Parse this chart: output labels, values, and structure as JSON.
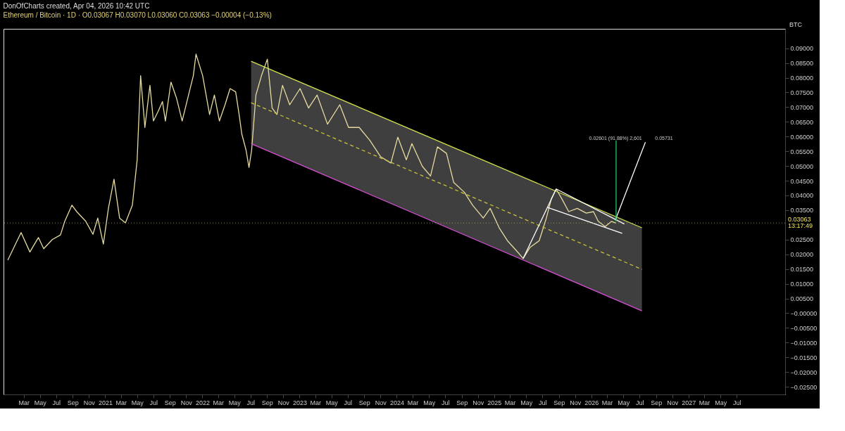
{
  "chart_data": {
    "type": "line",
    "title": "DonOfCharts created, Apr 04, 2026 10:42 UTC",
    "subtitle": "Ethereum / Bitcoin · 1D · O0.03067 H0.03070 L0.03060 C0.03063 −0.00004 (−0.13%)",
    "ylabel": "BTC",
    "x": [
      "2020-01-01",
      "2020-02-20",
      "2020-03-24",
      "2020-04-25",
      "2020-05-15",
      "2020-06-16",
      "2020-07-17",
      "2020-08-02",
      "2020-08-29",
      "2020-09-16",
      "2020-10-20",
      "2020-11-16",
      "2020-12-04",
      "2020-12-25",
      "2021-01-13",
      "2021-02-03",
      "2021-02-24",
      "2021-03-18",
      "2021-04-13",
      "2021-05-01",
      "2021-05-14",
      "2021-05-30",
      "2021-06-18",
      "2021-07-01",
      "2021-07-19",
      "2021-08-04",
      "2021-08-15",
      "2021-09-05",
      "2021-09-26",
      "2021-10-17",
      "2021-11-10",
      "2021-11-28",
      "2021-12-08",
      "2022-01-02",
      "2022-01-28",
      "2022-02-15",
      "2022-03-06",
      "2022-03-27",
      "2022-04-15",
      "2022-05-06",
      "2022-05-19",
      "2022-05-29",
      "2022-06-14",
      "2022-06-25",
      "2022-07-05",
      "2022-07-21",
      "2022-08-11",
      "2022-09-02",
      "2022-09-20",
      "2022-10-08",
      "2022-10-29",
      "2022-11-25",
      "2023-01-03",
      "2023-02-04",
      "2023-03-08",
      "2023-04-16",
      "2023-06-01",
      "2023-07-04",
      "2023-08-13",
      "2023-09-22",
      "2023-11-01",
      "2023-12-10",
      "2024-01-05",
      "2024-02-06",
      "2024-02-27",
      "2024-04-06",
      "2024-05-07",
      "2024-06-02",
      "2024-07-06",
      "2024-08-02",
      "2024-09-11",
      "2024-10-12",
      "2024-11-21",
      "2024-12-17",
      "2025-01-20",
      "2025-02-20",
      "2025-03-25",
      "2025-04-20",
      "2025-05-16",
      "2025-06-19",
      "2025-07-16",
      "2025-08-04",
      "2025-08-22",
      "2025-09-12",
      "2025-10-08",
      "2025-11-09",
      "2025-12-13",
      "2026-01-09",
      "2026-01-27",
      "2026-02-22",
      "2026-03-18",
      "2026-04-04"
    ],
    "series": [
      {
        "color": "#e6dba0",
        "values": [
          0.018,
          0.0274,
          0.0208,
          0.0257,
          0.0219,
          0.025,
          0.0266,
          0.0312,
          0.0367,
          0.0345,
          0.0312,
          0.0268,
          0.0323,
          0.0235,
          0.0356,
          0.0455,
          0.0323,
          0.0307,
          0.0367,
          0.0521,
          0.0807,
          0.0631,
          0.0774,
          0.0653,
          0.0686,
          0.0719,
          0.0653,
          0.0785,
          0.073,
          0.0653,
          0.0741,
          0.0807,
          0.088,
          0.0807,
          0.0675,
          0.0741,
          0.0653,
          0.0708,
          0.0763,
          0.0752,
          0.0675,
          0.0609,
          0.0554,
          0.0495,
          0.0554,
          0.0741,
          0.0807,
          0.0863,
          0.0697,
          0.0675,
          0.0774,
          0.0708,
          0.0763,
          0.0697,
          0.0741,
          0.0642,
          0.0708,
          0.0631,
          0.0631,
          0.0587,
          0.0532,
          0.051,
          0.0598,
          0.0521,
          0.0576,
          0.0499,
          0.0466,
          0.0565,
          0.0543,
          0.0444,
          0.0411,
          0.0367,
          0.0323,
          0.0356,
          0.029,
          0.0246,
          0.0213,
          0.0186,
          0.0224,
          0.0246,
          0.0323,
          0.0389,
          0.0422,
          0.0389,
          0.0345,
          0.0356,
          0.034,
          0.0345,
          0.0312,
          0.0294,
          0.0312,
          0.0306
        ]
      },
      {
        "color": "#d6e04a",
        "x": [
          "2022-07-03",
          "2026-07-10"
        ],
        "values": [
          0.0856,
          0.029
        ]
      },
      {
        "color": "#d64fd6",
        "x": [
          "2022-07-03",
          "2026-07-10"
        ],
        "values": [
          0.0576,
          0.0008
        ]
      },
      {
        "color": "#c9c23a",
        "line_style": "dashed",
        "x": [
          "2022-07-03",
          "2026-07-10"
        ],
        "values": [
          0.0715,
          0.0149
        ],
        "lower": [
          0.0576,
          0.0008
        ],
        "upper": [
          0.0856,
          0.029
        ]
      },
      {
        "color": "#ffffff",
        "x": [
          "2025-04-20",
          "2025-08-22"
        ],
        "values": [
          0.0186,
          0.0422
        ]
      },
      {
        "color": "#ffffff",
        "x": [
          "2025-08-22",
          "2026-05-05"
        ],
        "values": [
          0.0422,
          0.0303
        ]
      },
      {
        "color": "#ffffff",
        "x": [
          "2025-07-21",
          "2026-04-27"
        ],
        "values": [
          0.0359,
          0.0271
        ]
      },
      {
        "color": "#ffffff",
        "x": [
          "2026-04-01",
          "2026-07-23"
        ],
        "values": [
          0.0316,
          0.0581
        ]
      },
      {
        "color": "#22c55e",
        "x": [
          "2026-04-04",
          "2026-04-04"
        ],
        "values": [
          0.0312,
          0.0587
        ]
      }
    ],
    "xlim": [
      "2019-12-16",
      "2027-12-30"
    ],
    "xticks": [
      {
        "value": "2020-03-01",
        "label": "Mar"
      },
      {
        "value": "2020-05-01",
        "label": "May"
      },
      {
        "value": "2020-07-01",
        "label": "Jul"
      },
      {
        "value": "2020-09-01",
        "label": "Sep"
      },
      {
        "value": "2020-11-01",
        "label": "Nov"
      },
      {
        "value": "2021-01-01",
        "label": "2021"
      },
      {
        "value": "2021-03-01",
        "label": "Mar"
      },
      {
        "value": "2021-05-01",
        "label": "May"
      },
      {
        "value": "2021-07-01",
        "label": "Jul"
      },
      {
        "value": "2021-09-01",
        "label": "Sep"
      },
      {
        "value": "2021-11-01",
        "label": "Nov"
      },
      {
        "value": "2022-01-01",
        "label": "2022"
      },
      {
        "value": "2022-03-01",
        "label": "Mar"
      },
      {
        "value": "2022-05-01",
        "label": "May"
      },
      {
        "value": "2022-07-01",
        "label": "Jul"
      },
      {
        "value": "2022-09-01",
        "label": "Sep"
      },
      {
        "value": "2022-11-01",
        "label": "Nov"
      },
      {
        "value": "2023-01-01",
        "label": "2023"
      },
      {
        "value": "2023-03-01",
        "label": "Mar"
      },
      {
        "value": "2023-05-01",
        "label": "May"
      },
      {
        "value": "2023-07-01",
        "label": "Jul"
      },
      {
        "value": "2023-09-01",
        "label": "Sep"
      },
      {
        "value": "2023-11-01",
        "label": "Nov"
      },
      {
        "value": "2024-01-01",
        "label": "2024"
      },
      {
        "value": "2024-03-01",
        "label": "Mar"
      },
      {
        "value": "2024-05-01",
        "label": "May"
      },
      {
        "value": "2024-07-01",
        "label": "Jul"
      },
      {
        "value": "2024-09-01",
        "label": "Sep"
      },
      {
        "value": "2024-11-01",
        "label": "Nov"
      },
      {
        "value": "2025-01-01",
        "label": "2025"
      },
      {
        "value": "2025-03-01",
        "label": "Mar"
      },
      {
        "value": "2025-05-01",
        "label": "May"
      },
      {
        "value": "2025-07-01",
        "label": "Jul"
      },
      {
        "value": "2025-09-01",
        "label": "Sep"
      },
      {
        "value": "2025-11-01",
        "label": "Nov"
      },
      {
        "value": "2026-01-01",
        "label": "2026"
      },
      {
        "value": "2026-03-01",
        "label": "Mar"
      },
      {
        "value": "2026-05-01",
        "label": "May"
      },
      {
        "value": "2026-07-01",
        "label": "Jul"
      },
      {
        "value": "2026-09-01",
        "label": "Sep"
      },
      {
        "value": "2026-11-01",
        "label": "Nov"
      },
      {
        "value": "2027-01-01",
        "label": "2027"
      },
      {
        "value": "2027-03-01",
        "label": "Mar"
      },
      {
        "value": "2027-05-01",
        "label": "May"
      },
      {
        "value": "2027-07-01",
        "label": "Jul"
      }
    ],
    "ylim": [
      -0.0276,
      0.0966
    ],
    "yticks": [
      {
        "value": 0.09,
        "label": "0.09000"
      },
      {
        "value": 0.085,
        "label": "0.08500"
      },
      {
        "value": 0.08,
        "label": "0.08000"
      },
      {
        "value": 0.075,
        "label": "0.07500"
      },
      {
        "value": 0.07,
        "label": "0.07000"
      },
      {
        "value": 0.065,
        "label": "0.06500"
      },
      {
        "value": 0.06,
        "label": "0.06000"
      },
      {
        "value": 0.055,
        "label": "0.05500"
      },
      {
        "value": 0.05,
        "label": "0.05000"
      },
      {
        "value": 0.045,
        "label": "0.04500"
      },
      {
        "value": 0.04,
        "label": "0.04000"
      },
      {
        "value": 0.035,
        "label": "0.03500"
      },
      {
        "value": 0.025,
        "label": "0.02500"
      },
      {
        "value": 0.02,
        "label": "0.02000"
      },
      {
        "value": 0.015,
        "label": "0.01500"
      },
      {
        "value": 0.01,
        "label": "0.01000"
      },
      {
        "value": 0.005,
        "label": "0.00500"
      },
      {
        "value": 0,
        "label": "−0.00000"
      },
      {
        "value": -0.005,
        "label": "−0.00500"
      },
      {
        "value": -0.01,
        "label": "−0.01000"
      },
      {
        "value": -0.015,
        "label": "−0.01500"
      },
      {
        "value": -0.02,
        "label": "−0.02000"
      },
      {
        "value": -0.025,
        "label": "−0.02500"
      }
    ],
    "ref_lines": [
      {
        "axis": "y",
        "value": 0.03063,
        "label": "0.03063",
        "color": "#888866",
        "line_style": "dotted"
      }
    ],
    "annotations": [
      "13:17:49",
      "0.02601 (91.88%) 2,601",
      "0.05731"
    ],
    "grid": false
  }
}
